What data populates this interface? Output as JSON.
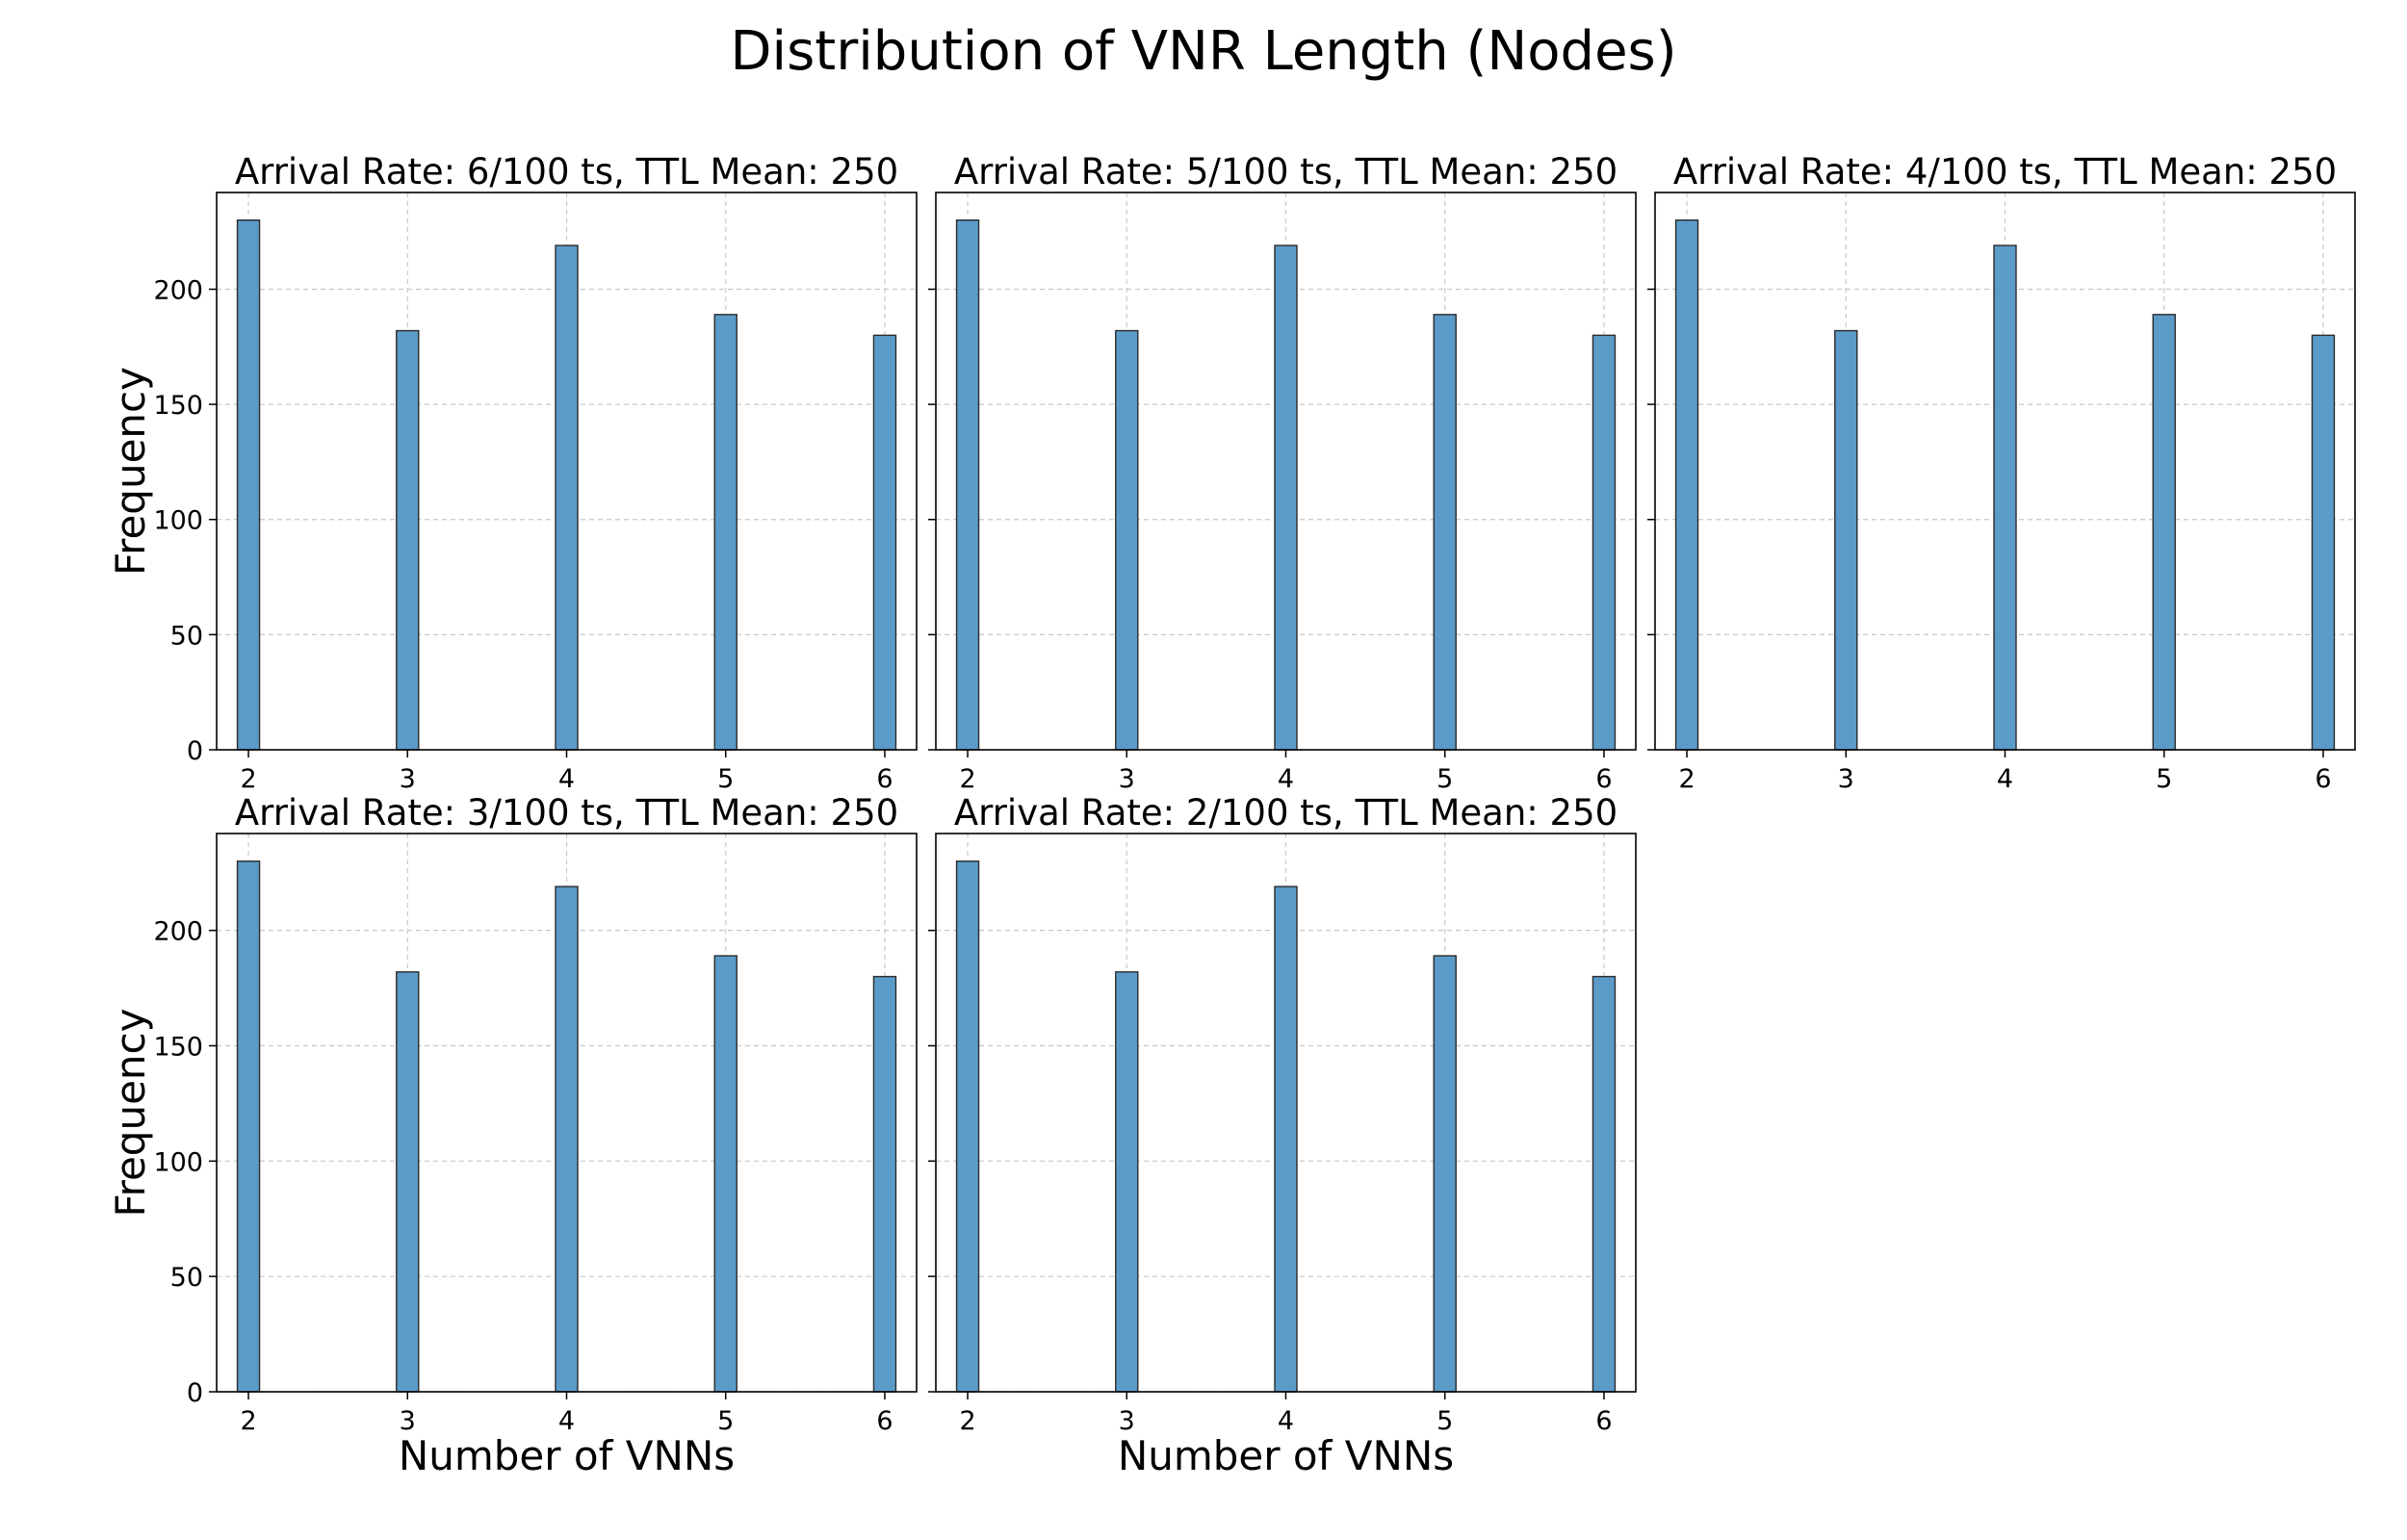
{
  "figure": {
    "title": "Distribution of VNR Length (Nodes)"
  },
  "colors": {
    "bar_fill": "#5b9bc8",
    "bar_edge": "#2b2b2b",
    "grid": "#c8c8c8",
    "frame": "#000000"
  },
  "chart_data": [
    {
      "type": "bar",
      "title": "Arrival Rate: 6/100 ts, TTL Mean: 250",
      "xlabel": "",
      "ylabel": "Frequency",
      "x": [
        2,
        3,
        4,
        5,
        6
      ],
      "values": [
        230,
        182,
        219,
        189,
        180
      ],
      "xticks": [
        2,
        3,
        4,
        5,
        6
      ],
      "yticks": [
        0,
        50,
        100,
        150,
        200
      ],
      "xlim": [
        1.8,
        6.2
      ],
      "ylim": [
        0,
        242
      ],
      "grid": true
    },
    {
      "type": "bar",
      "title": "Arrival Rate: 5/100 ts, TTL Mean: 250",
      "xlabel": "",
      "ylabel": "",
      "x": [
        2,
        3,
        4,
        5,
        6
      ],
      "values": [
        230,
        182,
        219,
        189,
        180
      ],
      "xticks": [
        2,
        3,
        4,
        5,
        6
      ],
      "yticks": [
        0,
        50,
        100,
        150,
        200
      ],
      "xlim": [
        1.8,
        6.2
      ],
      "ylim": [
        0,
        242
      ],
      "grid": true
    },
    {
      "type": "bar",
      "title": "Arrival Rate: 4/100 ts, TTL Mean: 250",
      "xlabel": "",
      "ylabel": "",
      "x": [
        2,
        3,
        4,
        5,
        6
      ],
      "values": [
        230,
        182,
        219,
        189,
        180
      ],
      "xticks": [
        2,
        3,
        4,
        5,
        6
      ],
      "yticks": [
        0,
        50,
        100,
        150,
        200
      ],
      "xlim": [
        1.8,
        6.2
      ],
      "ylim": [
        0,
        242
      ],
      "grid": true
    },
    {
      "type": "bar",
      "title": "Arrival Rate: 3/100 ts, TTL Mean: 250",
      "xlabel": "Number of VNNs",
      "ylabel": "Frequency",
      "x": [
        2,
        3,
        4,
        5,
        6
      ],
      "values": [
        230,
        182,
        219,
        189,
        180
      ],
      "xticks": [
        2,
        3,
        4,
        5,
        6
      ],
      "yticks": [
        0,
        50,
        100,
        150,
        200
      ],
      "xlim": [
        1.8,
        6.2
      ],
      "ylim": [
        0,
        242
      ],
      "grid": true
    },
    {
      "type": "bar",
      "title": "Arrival Rate: 2/100 ts, TTL Mean: 250",
      "xlabel": "Number of VNNs",
      "ylabel": "",
      "x": [
        2,
        3,
        4,
        5,
        6
      ],
      "values": [
        230,
        182,
        219,
        189,
        180
      ],
      "xticks": [
        2,
        3,
        4,
        5,
        6
      ],
      "yticks": [
        0,
        50,
        100,
        150,
        200
      ],
      "xlim": [
        1.8,
        6.2
      ],
      "ylim": [
        0,
        242
      ],
      "grid": true
    }
  ]
}
